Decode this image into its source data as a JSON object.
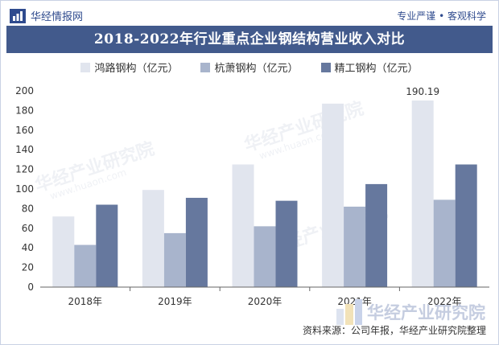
{
  "header": {
    "brand": "华经情报网",
    "tagline": "专业严谨 • 客观科学",
    "title": "2018-2022年行业重点企业钢结构营业收入对比"
  },
  "watermarks": {
    "text": "华经产业研究院",
    "site": "www.huaon.com"
  },
  "source": "资料来源：公司年报，华经产业研究院整理",
  "colors": {
    "title_bg": "#425a8c",
    "series": [
      "#e1e5ee",
      "#a8b4cc",
      "#66789e"
    ]
  },
  "chart_data": {
    "type": "bar",
    "title": "2018-2022年行业重点企业钢结构营业收入对比",
    "categories": [
      "2018年",
      "2019年",
      "2020年",
      "2021年",
      "2022年"
    ],
    "series": [
      {
        "name": "鸿路钢构（亿元）",
        "values": [
          72,
          99,
          125,
          187,
          190.19
        ]
      },
      {
        "name": "杭萧钢构（亿元）",
        "values": [
          43,
          55,
          62,
          82,
          89
        ]
      },
      {
        "name": "精工钢构（亿元）",
        "values": [
          84,
          91,
          88,
          105,
          125
        ]
      }
    ],
    "annotations": [
      {
        "series": 0,
        "index": 4,
        "label": "190.19"
      }
    ],
    "ylim": [
      0,
      200
    ],
    "yticks": [
      0,
      20,
      40,
      60,
      80,
      100,
      120,
      140,
      160,
      180,
      200
    ],
    "grid": false,
    "legend": "top-center"
  }
}
